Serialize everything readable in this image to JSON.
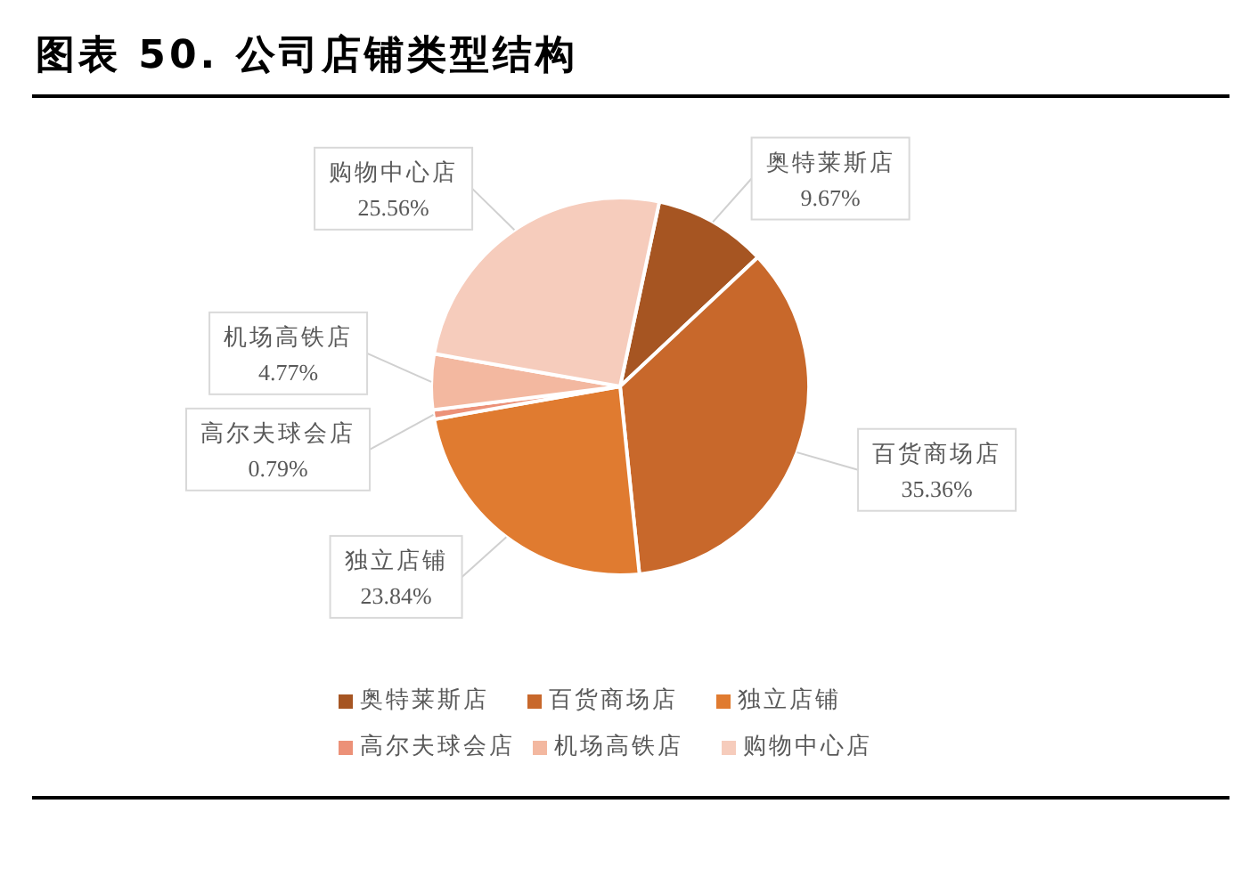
{
  "chart_data": {
    "type": "pie",
    "title": "图表 50. 公司店铺类型结构",
    "categories": [
      "奥特莱斯店",
      "百货商场店",
      "独立店铺",
      "高尔夫球会店",
      "机场高铁店",
      "购物中心店"
    ],
    "values": [
      9.67,
      35.36,
      23.84,
      0.79,
      4.77,
      25.56
    ],
    "colors": [
      "#a65522",
      "#c8682b",
      "#e07b30",
      "#ec9178",
      "#f3b8a0",
      "#f6ccbc"
    ],
    "value_labels": [
      "9.67%",
      "35.36%",
      "23.84%",
      "0.79%",
      "4.77%",
      "25.56%"
    ],
    "legend": "bottom"
  }
}
